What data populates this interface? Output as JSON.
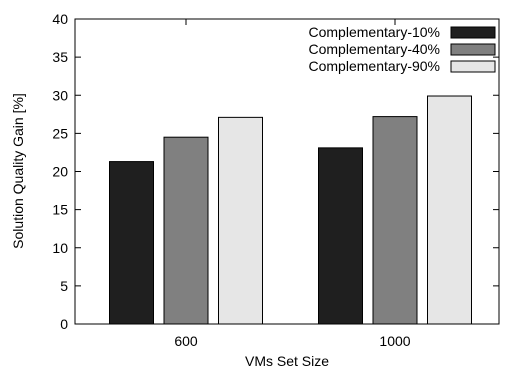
{
  "chart_data": {
    "type": "bar",
    "title": "",
    "xlabel": "VMs Set Size",
    "ylabel": "Solution Quality Gain [%]",
    "categories": [
      "600",
      "1000"
    ],
    "ylim": [
      0,
      40
    ],
    "yticks": [
      "0",
      "5",
      "10",
      "15",
      "20",
      "25",
      "30",
      "35",
      "40"
    ],
    "grid": false,
    "legend_position": "top-right",
    "series": [
      {
        "name": "Complementary-10%",
        "values": [
          21.3,
          23.1
        ],
        "color": "#1f1f1f"
      },
      {
        "name": "Complementary-40%",
        "values": [
          24.5,
          27.2
        ],
        "color": "#808080"
      },
      {
        "name": "Complementary-90%",
        "values": [
          27.1,
          29.9
        ],
        "color": "#e6e6e6"
      }
    ]
  }
}
